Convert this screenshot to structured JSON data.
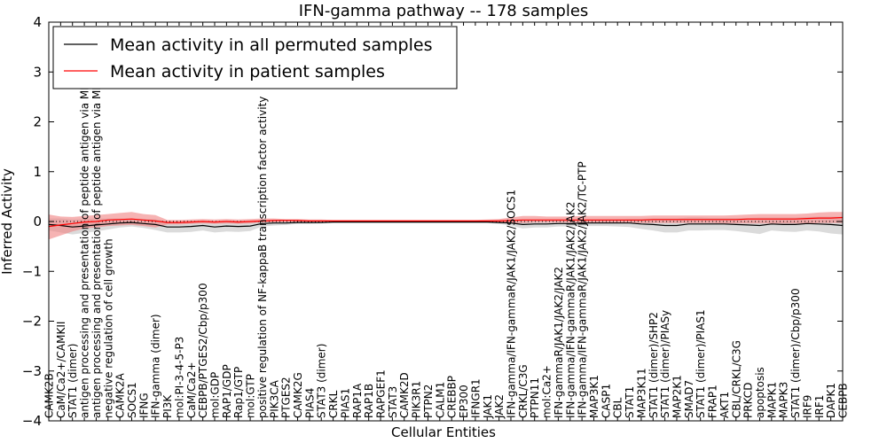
{
  "chart_data": {
    "type": "line",
    "title": "IFN-gamma pathway -- 178 samples",
    "xlabel": "Cellular Entities",
    "ylabel": "Inferred Activity",
    "ylim": [
      -4,
      4
    ],
    "yticks": [
      -4,
      -3,
      -2,
      -1,
      0,
      1,
      2,
      3,
      4
    ],
    "ytick_labels": [
      "−4",
      "−3",
      "−2",
      "−1",
      "0",
      "1",
      "2",
      "3",
      "4"
    ],
    "legend_position": "top-left",
    "categories": [
      "CAMK2B",
      "CaM/Ca2+/CAMKII",
      "STAT1 (dimer)",
      "antigen processing and presentation of peptide antigen via MHC class I",
      "antigen processing and presentation of peptide antigen via MHC class II",
      "negative regulation of cell growth",
      "CAMK2A",
      "SOCS1",
      "IFNG",
      "IFN-gamma (dimer)",
      "PI3K",
      "mol:PI-3-4-5-P3",
      "CaM/Ca2+",
      "CEBPB/PTGES2/Cbp/p300",
      "mol:GDP",
      "RAP1/GDP",
      "Rap1/GTP",
      "mol:GTP",
      "positive regulation of NF-kappaB transcription factor activity",
      "PIK3CA",
      "PTGES2",
      "CAMK2G",
      "PIAS4",
      "STAT3 (dimer)",
      "CRKL",
      "PIAS1",
      "RAP1A",
      "RAP1B",
      "RAPGEF1",
      "STAT3",
      "CAMK2D",
      "PIK3R1",
      "PTPN2",
      "CALM1",
      "CREBBP",
      "EP300",
      "IFNGR1",
      "JAK1",
      "JAK2",
      "IFN-gamma/IFN-gammaR/JAK1/JAK2/SOCS1",
      "CRKL/C3G",
      "PTPN11",
      "mol:Ca2+",
      "IFN-gammaR/JAK1/JAK2/JAK2",
      "IFN-gamma/IFN-gammaR/JAK1/JAK2/JAK2",
      "IFN-gamma/IFN-gammaR/JAK1/JAK2/JAK2/TC-PTP",
      "MAP3K1",
      "CASP1",
      "CBL",
      "STAT1",
      "MAP3K11",
      "STAT1 (dimer)/SHP2",
      "STAT1 (dimer)/PIASy",
      "MAP2K1",
      "SMAD7",
      "STAT1 (dimer)/PIAS1",
      "FRAP1",
      "AKT1",
      "CBL/CRKL/C3G",
      "PRKCD",
      "apoptosis",
      "MAPK1",
      "MAPK3",
      "STAT1 (dimer)/Cbp/p300",
      "IRF9",
      "IRF1",
      "DAPK1",
      "CEBPB"
    ],
    "series": [
      {
        "name": "Mean activity in all permuted samples",
        "color": "#000000",
        "values": [
          -0.06,
          -0.08,
          -0.11,
          -0.09,
          -0.07,
          -0.05,
          -0.03,
          -0.02,
          -0.04,
          -0.06,
          -0.11,
          -0.11,
          -0.1,
          -0.08,
          -0.11,
          -0.09,
          -0.1,
          -0.09,
          -0.04,
          -0.03,
          -0.03,
          -0.02,
          -0.02,
          -0.02,
          -0.01,
          -0.01,
          -0.01,
          -0.01,
          -0.01,
          -0.01,
          -0.01,
          -0.01,
          -0.01,
          -0.01,
          -0.01,
          -0.01,
          -0.01,
          -0.01,
          -0.02,
          -0.03,
          -0.06,
          -0.05,
          -0.05,
          -0.04,
          -0.04,
          -0.03,
          -0.03,
          -0.03,
          -0.03,
          -0.03,
          -0.05,
          -0.06,
          -0.08,
          -0.08,
          -0.05,
          -0.05,
          -0.05,
          -0.05,
          -0.06,
          -0.07,
          -0.08,
          -0.05,
          -0.06,
          -0.06,
          -0.04,
          -0.05,
          -0.06,
          -0.08
        ]
      },
      {
        "name": "Mean activity in patient samples",
        "color": "#ff0000",
        "values": [
          -0.1,
          -0.07,
          -0.04,
          -0.01,
          0.0,
          0.03,
          0.04,
          0.05,
          0.03,
          0.01,
          -0.02,
          -0.02,
          -0.01,
          0.0,
          -0.01,
          0.0,
          -0.01,
          0.0,
          0.01,
          0.02,
          0.02,
          0.02,
          0.01,
          0.01,
          0.01,
          0.01,
          0.01,
          0.01,
          0.01,
          0.01,
          0.01,
          0.01,
          0.01,
          0.01,
          0.01,
          0.01,
          0.01,
          0.01,
          0.01,
          0.02,
          0.03,
          0.03,
          0.03,
          0.03,
          0.03,
          0.03,
          0.03,
          0.03,
          0.03,
          0.03,
          0.03,
          0.04,
          0.04,
          0.04,
          0.04,
          0.04,
          0.04,
          0.04,
          0.04,
          0.05,
          0.05,
          0.05,
          0.05,
          0.05,
          0.06,
          0.07,
          0.07,
          0.08
        ]
      }
    ],
    "bands": [
      {
        "name": "Permuted samples spread",
        "color": "#bdbdbd",
        "lower": [
          -0.18,
          -0.22,
          -0.26,
          -0.23,
          -0.2,
          -0.16,
          -0.12,
          -0.1,
          -0.13,
          -0.17,
          -0.22,
          -0.22,
          -0.21,
          -0.18,
          -0.22,
          -0.2,
          -0.21,
          -0.19,
          -0.1,
          -0.08,
          -0.07,
          -0.05,
          -0.05,
          -0.04,
          -0.03,
          -0.03,
          -0.03,
          -0.03,
          -0.03,
          -0.03,
          -0.03,
          -0.03,
          -0.03,
          -0.03,
          -0.03,
          -0.03,
          -0.03,
          -0.03,
          -0.05,
          -0.08,
          -0.14,
          -0.12,
          -0.12,
          -0.1,
          -0.1,
          -0.09,
          -0.09,
          -0.09,
          -0.1,
          -0.11,
          -0.15,
          -0.18,
          -0.22,
          -0.22,
          -0.18,
          -0.18,
          -0.17,
          -0.17,
          -0.19,
          -0.22,
          -0.25,
          -0.18,
          -0.2,
          -0.21,
          -0.18,
          -0.2,
          -0.24,
          -0.26
        ],
        "upper": [
          0.06,
          0.06,
          0.04,
          0.05,
          0.06,
          0.06,
          0.06,
          0.06,
          0.05,
          0.05,
          0.0,
          0.0,
          0.01,
          0.02,
          0.0,
          0.02,
          0.01,
          0.01,
          0.02,
          0.02,
          0.02,
          0.02,
          0.01,
          0.01,
          0.01,
          0.01,
          0.01,
          0.01,
          0.01,
          0.01,
          0.01,
          0.01,
          0.01,
          0.01,
          0.01,
          0.01,
          0.01,
          0.01,
          0.01,
          0.02,
          0.02,
          0.02,
          0.02,
          0.02,
          0.02,
          0.03,
          0.03,
          0.03,
          0.04,
          0.05,
          0.05,
          0.06,
          0.06,
          0.06,
          0.08,
          0.08,
          0.07,
          0.07,
          0.07,
          0.07,
          0.08,
          0.08,
          0.08,
          0.08,
          0.09,
          0.1,
          0.1,
          0.1
        ]
      },
      {
        "name": "Patient samples spread",
        "color": "#f08080",
        "lower": [
          -0.36,
          -0.28,
          -0.2,
          -0.14,
          -0.12,
          -0.09,
          -0.08,
          -0.07,
          -0.09,
          -0.12,
          -0.06,
          -0.06,
          -0.05,
          -0.04,
          -0.05,
          -0.04,
          -0.05,
          -0.04,
          -0.02,
          -0.01,
          0.0,
          0.0,
          0.0,
          0.0,
          0.0,
          0.0,
          0.0,
          0.0,
          0.0,
          0.0,
          0.0,
          0.0,
          0.0,
          0.0,
          0.0,
          0.0,
          0.0,
          -0.01,
          -0.02,
          -0.03,
          -0.03,
          -0.02,
          -0.02,
          -0.02,
          -0.02,
          -0.02,
          -0.02,
          -0.02,
          -0.02,
          -0.02,
          -0.03,
          -0.03,
          -0.03,
          -0.03,
          -0.03,
          -0.03,
          -0.03,
          -0.04,
          -0.04,
          -0.04,
          -0.04,
          -0.04,
          -0.04,
          -0.04,
          -0.04,
          -0.03,
          -0.03,
          -0.03
        ],
        "upper": [
          0.14,
          0.1,
          0.09,
          0.11,
          0.13,
          0.15,
          0.17,
          0.19,
          0.15,
          0.13,
          0.03,
          0.03,
          0.04,
          0.05,
          0.04,
          0.05,
          0.04,
          0.05,
          0.06,
          0.06,
          0.05,
          0.05,
          0.04,
          0.04,
          0.03,
          0.03,
          0.03,
          0.03,
          0.03,
          0.03,
          0.03,
          0.03,
          0.03,
          0.03,
          0.03,
          0.03,
          0.03,
          0.04,
          0.05,
          0.08,
          0.11,
          0.11,
          0.1,
          0.1,
          0.1,
          0.11,
          0.11,
          0.11,
          0.11,
          0.11,
          0.11,
          0.12,
          0.12,
          0.12,
          0.12,
          0.12,
          0.12,
          0.12,
          0.13,
          0.14,
          0.15,
          0.15,
          0.15,
          0.15,
          0.16,
          0.18,
          0.19,
          0.19
        ]
      }
    ],
    "reference_line": {
      "y": 0,
      "style": "dotted"
    }
  }
}
